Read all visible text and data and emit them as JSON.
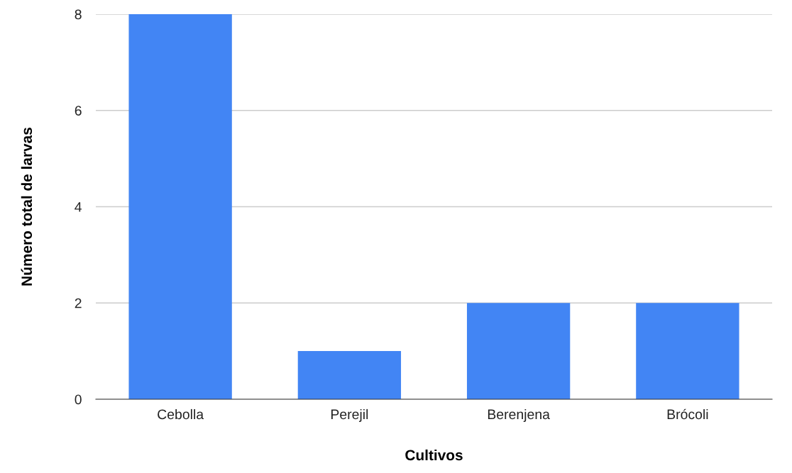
{
  "chart_data": {
    "type": "bar",
    "xlabel": "Cultivos",
    "ylabel": "Número total de larvas",
    "categories": [
      "Cebolla",
      "Perejil",
      "Berenjena",
      "Brócoli"
    ],
    "values": [
      8,
      1,
      2,
      2
    ],
    "color": "#4285f4",
    "ylim": [
      0,
      8
    ],
    "yticks": [
      0,
      2,
      4,
      6,
      8
    ],
    "grid": "y"
  }
}
